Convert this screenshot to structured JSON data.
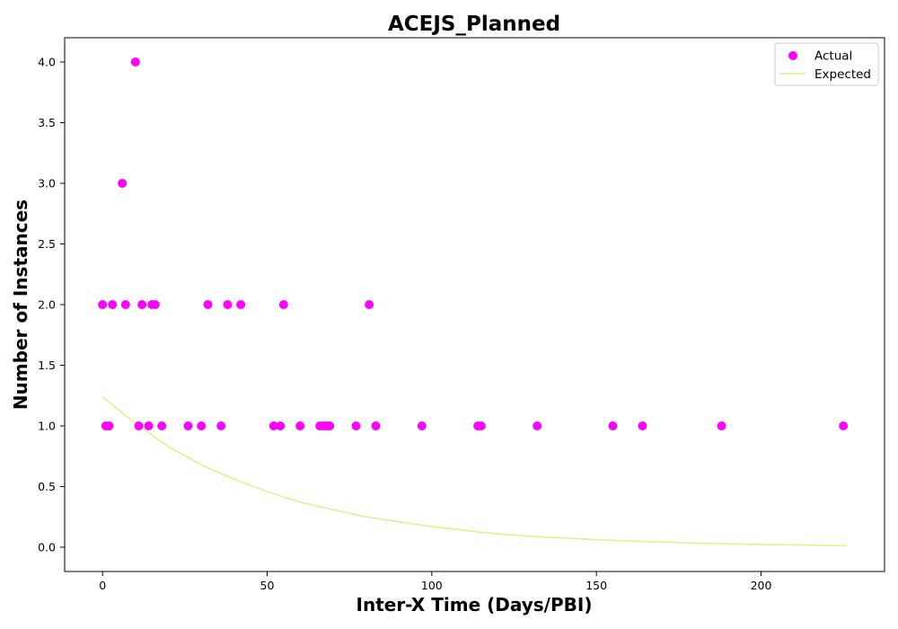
{
  "chart_data": {
    "type": "scatter",
    "title": "ACEJS_Planned",
    "xlabel": "Inter-X Time (Days/PBI)",
    "ylabel": "Number of Instances",
    "xlim": [
      -11.5,
      237.5
    ],
    "ylim": [
      -0.2,
      4.2
    ],
    "xticks": [
      "0",
      "50",
      "100",
      "150",
      "200"
    ],
    "yticks": [
      "0.0",
      "0.5",
      "1.0",
      "1.5",
      "2.0",
      "2.5",
      "3.0",
      "3.5",
      "4.0"
    ],
    "legend_position": "top-right",
    "grid": false,
    "series": [
      {
        "name": "Actual",
        "kind": "scatter",
        "color": "#ff00ff",
        "points": [
          [
            0,
            2
          ],
          [
            1,
            1
          ],
          [
            2,
            1
          ],
          [
            3,
            2
          ],
          [
            6,
            3
          ],
          [
            7,
            2
          ],
          [
            10,
            4
          ],
          [
            11,
            1
          ],
          [
            12,
            2
          ],
          [
            14,
            1
          ],
          [
            15,
            2
          ],
          [
            16,
            2
          ],
          [
            18,
            1
          ],
          [
            26,
            1
          ],
          [
            30,
            1
          ],
          [
            32,
            2
          ],
          [
            36,
            1
          ],
          [
            38,
            2
          ],
          [
            42,
            2
          ],
          [
            52,
            1
          ],
          [
            54,
            1
          ],
          [
            55,
            2
          ],
          [
            60,
            1
          ],
          [
            66,
            1
          ],
          [
            67,
            1
          ],
          [
            68,
            1
          ],
          [
            69,
            1
          ],
          [
            77,
            1
          ],
          [
            81,
            2
          ],
          [
            83,
            1
          ],
          [
            97,
            1
          ],
          [
            114,
            1
          ],
          [
            115,
            1
          ],
          [
            132,
            1
          ],
          [
            155,
            1
          ],
          [
            164,
            1
          ],
          [
            188,
            1
          ],
          [
            225,
            1
          ]
        ]
      },
      {
        "name": "Expected",
        "kind": "line",
        "color": "#f0e68c",
        "points": [
          [
            0,
            1.24
          ],
          [
            10,
            1.02
          ],
          [
            20,
            0.83
          ],
          [
            30,
            0.68
          ],
          [
            40,
            0.56
          ],
          [
            50,
            0.46
          ],
          [
            60,
            0.37
          ],
          [
            70,
            0.31
          ],
          [
            80,
            0.25
          ],
          [
            90,
            0.21
          ],
          [
            100,
            0.17
          ],
          [
            110,
            0.14
          ],
          [
            120,
            0.11
          ],
          [
            130,
            0.09
          ],
          [
            140,
            0.076
          ],
          [
            150,
            0.062
          ],
          [
            160,
            0.051
          ],
          [
            170,
            0.042
          ],
          [
            180,
            0.034
          ],
          [
            190,
            0.028
          ],
          [
            200,
            0.023
          ],
          [
            210,
            0.019
          ],
          [
            220,
            0.015
          ],
          [
            226,
            0.013
          ]
        ]
      }
    ]
  }
}
